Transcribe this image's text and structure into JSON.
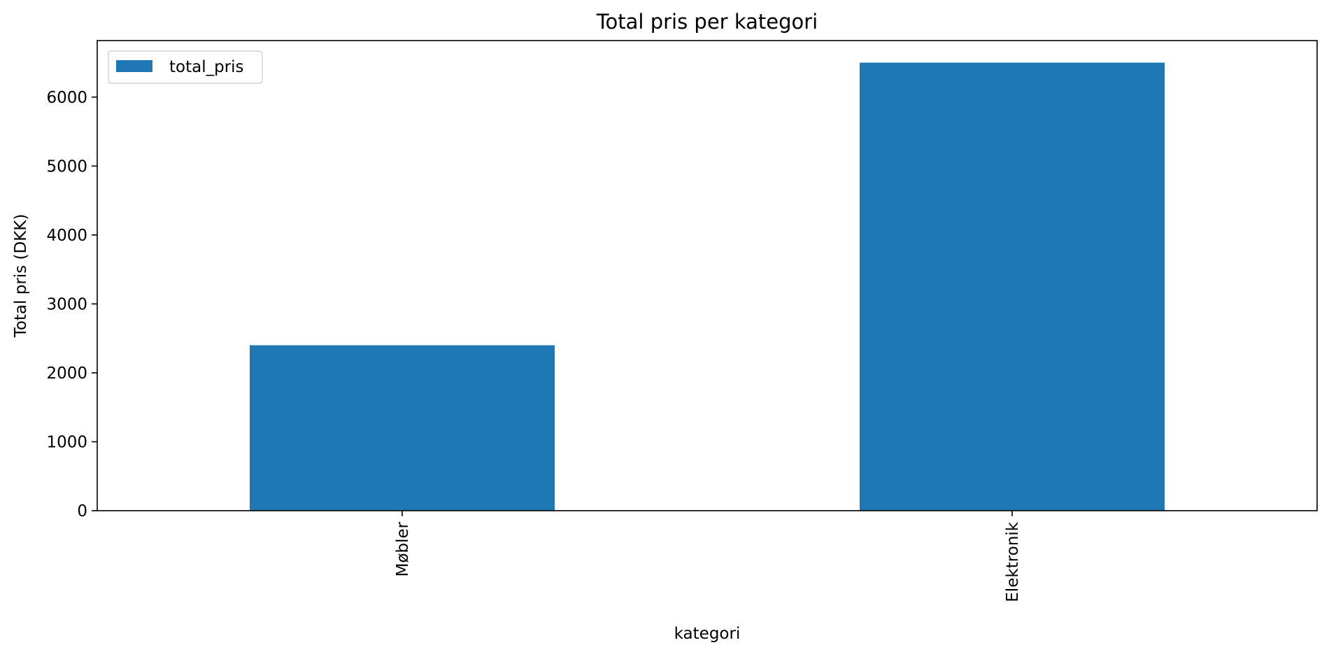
{
  "chart_data": {
    "type": "bar",
    "title": "Total pris per kategori",
    "xlabel": "kategori",
    "ylabel": "Total pris (DKK)",
    "categories": [
      "Møbler",
      "Elektronik"
    ],
    "series": [
      {
        "name": "total_pris",
        "values": [
          2400,
          6500
        ],
        "color": "#1f77b4"
      }
    ],
    "ylim": [
      0,
      6820
    ],
    "yticks": [
      0,
      1000,
      2000,
      3000,
      4000,
      5000,
      6000
    ],
    "xtick_rotation": 90,
    "grid": false,
    "legend_position": "top-left"
  }
}
